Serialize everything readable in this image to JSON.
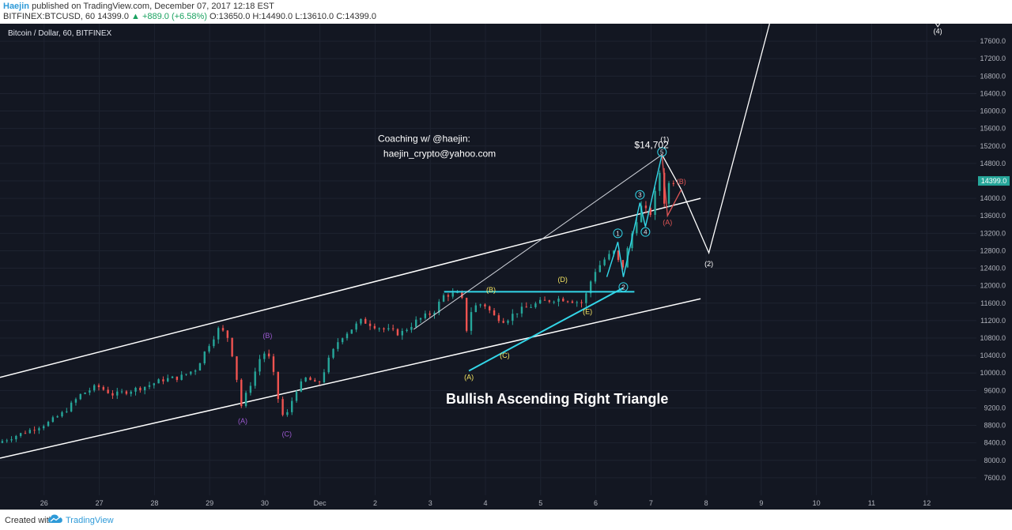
{
  "header": {
    "author": "Haejin",
    "published_text": "published on TradingView.com, December 07, 2017 12:18 EST",
    "symbol_line_prefix": "BITFINEX:BTCUSD, 60  14399.0",
    "change_text": "▲ +889.0 (+6.58%)",
    "ohlc_text": "O:13650.0 H:14490.0 L:13610.0 C:14399.0"
  },
  "footer": {
    "created_with": "Created with",
    "brand": "TradingView"
  },
  "colors": {
    "background": "#131722",
    "up_candle": "#26a69a",
    "down_candle": "#ef5350",
    "channel": "#ffffff",
    "triangle": "#33d6e8",
    "impulse": "#33d6e8",
    "correction_a": "#e05555",
    "wave_abc": "#9b59d0",
    "wave_abcde": "#f5e663",
    "price_tag": "#26a69a"
  },
  "chart_data": {
    "type": "candlestick",
    "title": "Bitcoin / Dollar, 60, BITFINEX",
    "timeframe_minutes": 60,
    "x_ticks": [
      "26",
      "27",
      "28",
      "29",
      "30",
      "Dec",
      "2",
      "3",
      "4",
      "5",
      "6",
      "7",
      "8",
      "9",
      "10",
      "11",
      "12"
    ],
    "x_range_days": [
      25.2,
      12.9
    ],
    "ylim": [
      7200,
      18000
    ],
    "y_ticks": [
      7600,
      8000,
      8400,
      8800,
      9200,
      9600,
      10000,
      10400,
      10800,
      11200,
      11600,
      12000,
      12400,
      12800,
      13200,
      13600,
      14000,
      14400,
      14800,
      15200,
      15600,
      16000,
      16400,
      16800,
      17200,
      17600
    ],
    "y_tick_labels": [
      "7600.0",
      "8000.0",
      "8400.0",
      "8800.0",
      "9200.0",
      "9600.0",
      "10000.0",
      "10400.0",
      "10800.0",
      "11200.0",
      "11600.0",
      "12000.0",
      "12400.0",
      "12800.0",
      "13200.0",
      "13600.0",
      "14000.0",
      "14400.0",
      "14800.0",
      "15200.0",
      "15600.0",
      "16000.0",
      "16400.0",
      "16800.0",
      "17200.0",
      "17600.0"
    ],
    "last_price": 14399.0,
    "last_price_label": "14399.0",
    "price_path": [
      [
        25.2,
        8400
      ],
      [
        25.5,
        8550
      ],
      [
        25.8,
        8700
      ],
      [
        26.1,
        8850
      ],
      [
        26.4,
        9100
      ],
      [
        26.7,
        9500
      ],
      [
        27.0,
        9700
      ],
      [
        27.3,
        9500
      ],
      [
        27.6,
        9600
      ],
      [
        27.9,
        9700
      ],
      [
        28.2,
        9850
      ],
      [
        28.5,
        9900
      ],
      [
        28.8,
        10100
      ],
      [
        29.0,
        10600
      ],
      [
        29.2,
        11000
      ],
      [
        29.35,
        10900
      ],
      [
        29.5,
        10200
      ],
      [
        29.6,
        9200
      ],
      [
        29.8,
        9800
      ],
      [
        30.0,
        10500
      ],
      [
        30.15,
        10300
      ],
      [
        30.3,
        9300
      ],
      [
        30.4,
        8900
      ],
      [
        30.6,
        9600
      ],
      [
        30.8,
        9900
      ],
      [
        31.0,
        9700
      ],
      [
        31.2,
        10300
      ],
      [
        31.4,
        10800
      ],
      [
        31.6,
        11000
      ],
      [
        31.8,
        11200
      ],
      [
        32.0,
        11100
      ],
      [
        32.2,
        11000
      ],
      [
        32.5,
        10900
      ],
      [
        32.8,
        11200
      ],
      [
        33.1,
        11400
      ],
      [
        33.3,
        11800
      ],
      [
        33.6,
        11800
      ],
      [
        33.7,
        11000
      ],
      [
        33.8,
        11500
      ],
      [
        34.0,
        11600
      ],
      [
        34.2,
        11300
      ],
      [
        34.4,
        11200
      ],
      [
        34.6,
        11400
      ],
      [
        34.8,
        11500
      ],
      [
        35.0,
        11600
      ],
      [
        35.3,
        11700
      ],
      [
        35.5,
        11700
      ],
      [
        35.8,
        11600
      ],
      [
        35.9,
        11900
      ],
      [
        36.0,
        12300
      ],
      [
        36.2,
        12600
      ],
      [
        36.4,
        12800
      ],
      [
        36.5,
        12300
      ],
      [
        36.7,
        13200
      ],
      [
        36.8,
        13600
      ],
      [
        36.9,
        13900
      ],
      [
        37.0,
        13500
      ],
      [
        37.1,
        14000
      ],
      [
        37.2,
        14600
      ],
      [
        37.25,
        14400
      ],
      [
        37.3,
        13700
      ],
      [
        37.35,
        14300
      ],
      [
        37.4,
        14399
      ]
    ],
    "channel_lines": [
      {
        "from": [
          25.2,
          9900
        ],
        "to": [
          37.9,
          14000
        ]
      },
      {
        "from": [
          25.2,
          8050
        ],
        "to": [
          37.9,
          11700
        ]
      }
    ],
    "triangle_lines": [
      {
        "from": [
          33.25,
          11860
        ],
        "to": [
          36.7,
          11860
        ]
      },
      {
        "from": [
          33.7,
          10050
        ],
        "to": [
          36.5,
          11950
        ]
      }
    ],
    "impulse_path": [
      [
        36.2,
        12200
      ],
      [
        36.4,
        13000
      ],
      [
        36.5,
        12200
      ],
      [
        36.8,
        13900
      ],
      [
        36.9,
        13350
      ],
      [
        37.2,
        15000
      ]
    ],
    "projection_path": [
      [
        37.2,
        15000
      ],
      [
        37.55,
        14200
      ],
      [
        38.05,
        12750
      ],
      [
        39.15,
        18000
      ]
    ],
    "correction_path": [
      [
        37.2,
        15000
      ],
      [
        37.3,
        13600
      ],
      [
        37.55,
        14200
      ]
    ],
    "ab_fan_line": {
      "from": [
        32.7,
        11000
      ],
      "to": [
        37.2,
        15000
      ]
    },
    "labels": [
      {
        "text": "(A)",
        "x": 29.6,
        "y": 8850,
        "color_key": "wave_abc"
      },
      {
        "text": "(B)",
        "x": 30.05,
        "y": 10800,
        "color_key": "wave_abc"
      },
      {
        "text": "(C)",
        "x": 30.4,
        "y": 8550,
        "color_key": "wave_abc"
      },
      {
        "text": "(A)",
        "x": 33.7,
        "y": 9850,
        "color_key": "wave_abcde"
      },
      {
        "text": "(B)",
        "x": 34.1,
        "y": 11850,
        "color_key": "wave_abcde"
      },
      {
        "text": "(C)",
        "x": 34.35,
        "y": 10350,
        "color_key": "wave_abcde"
      },
      {
        "text": "(D)",
        "x": 35.4,
        "y": 12080,
        "color_key": "wave_abcde"
      },
      {
        "text": "(E)",
        "x": 35.85,
        "y": 11350,
        "color_key": "wave_abcde"
      },
      {
        "text": "(A)",
        "x": 37.3,
        "y": 13400,
        "color_key": "correction_a"
      },
      {
        "text": "(B)",
        "x": 37.55,
        "y": 14330,
        "color_key": "correction_a"
      },
      {
        "text": "(1)",
        "x": 37.25,
        "y": 15300,
        "color_key": "channel"
      },
      {
        "text": "(2)",
        "x": 38.05,
        "y": 12450,
        "color_key": "channel"
      },
      {
        "text": "(4)",
        "x": 42.2,
        "y": 17770,
        "color_key": "channel"
      }
    ],
    "circled_labels": [
      {
        "text": "1",
        "x": 36.4,
        "y": 13200
      },
      {
        "text": "2",
        "x": 36.5,
        "y": 11970
      },
      {
        "text": "3",
        "x": 36.8,
        "y": 14080
      },
      {
        "text": "4",
        "x": 36.9,
        "y": 13230
      },
      {
        "text": "5",
        "x": 37.2,
        "y": 15060
      }
    ],
    "annotations": [
      {
        "text": "$14,702",
        "x": 36.7,
        "y": 15150
      },
      {
        "text": "Coaching w/ @haejin:",
        "x": 32.05,
        "y": 15300
      },
      {
        "text": "haejin_crypto@yahoo.com",
        "x": 32.15,
        "y": 14950
      },
      {
        "text": "Bullish Ascending Right Triangle",
        "x": 35.3,
        "y": 9300
      }
    ]
  }
}
